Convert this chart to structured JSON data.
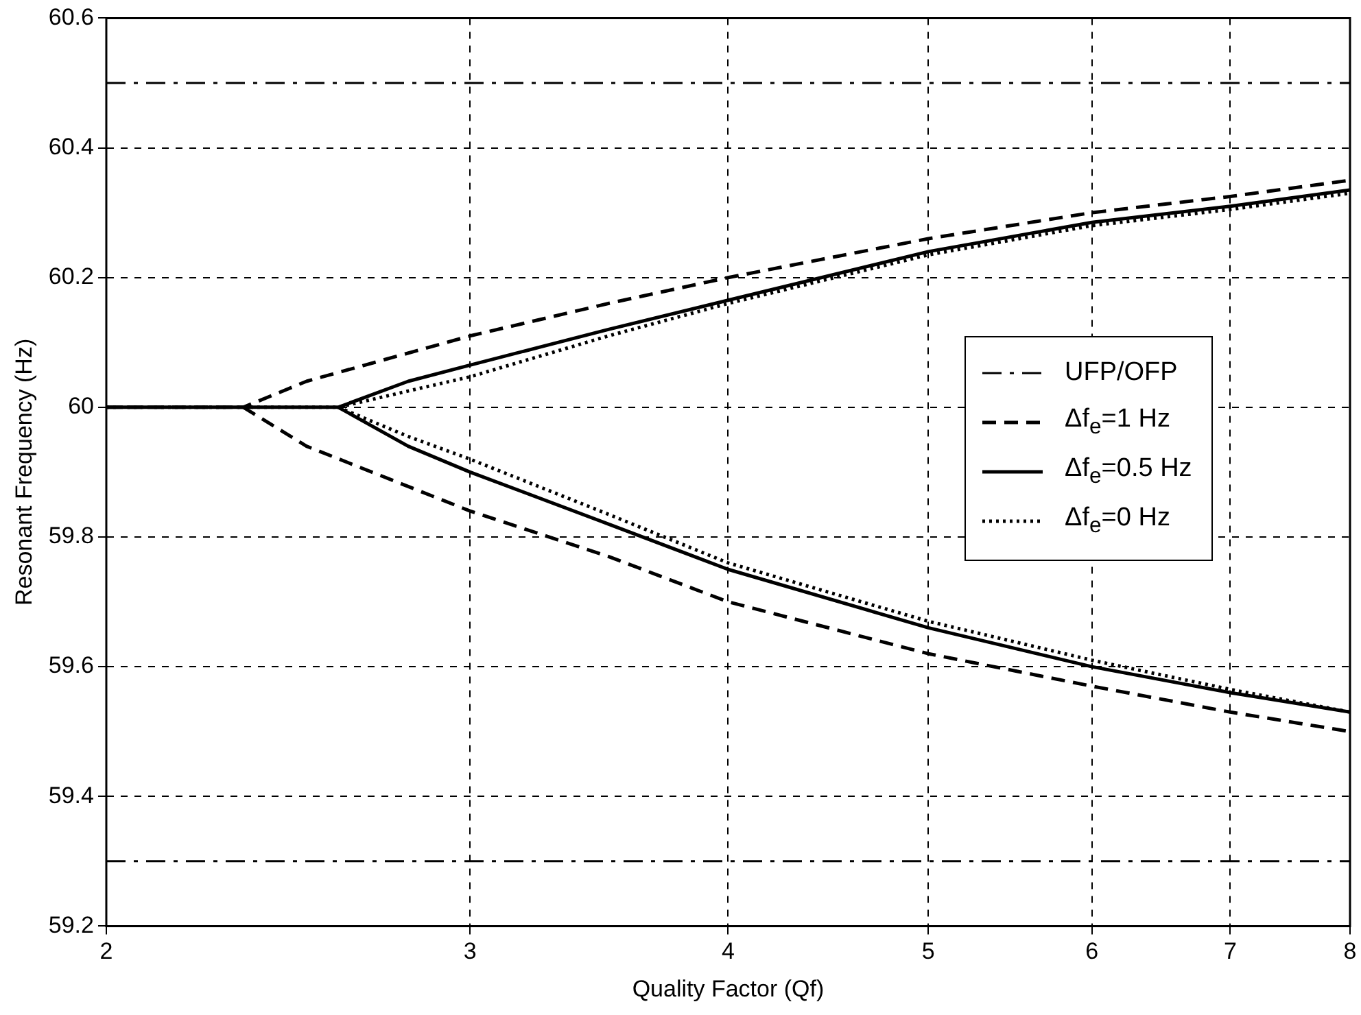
{
  "chart_data": {
    "type": "line",
    "xlabel": "Quality Factor (Qf)",
    "ylabel": "Resonant Frequency (Hz)",
    "log": "x",
    "xlim": [
      2,
      8
    ],
    "xticks": [
      2,
      3,
      4,
      5,
      6,
      7,
      8
    ],
    "ylim": [
      59.2,
      60.6
    ],
    "yticks": [
      59.2,
      59.4,
      59.6,
      59.8,
      60,
      60.2,
      60.4,
      60.6
    ],
    "grid": true,
    "legend": "right",
    "marker": "none",
    "series": [
      {
        "name": "UFP/OFP",
        "color": "#000000",
        "line_style": "dashdot",
        "x": [
          2,
          8
        ],
        "values": [
          60.5,
          60.5
        ]
      },
      {
        "color": "#000000",
        "line_style": "dashdot",
        "x": [
          2,
          8
        ],
        "values": [
          59.3,
          59.3
        ]
      },
      {
        "name": "Δf$_{e}$=1 Hz",
        "color": "#000000",
        "line_style": "dashed",
        "x": [
          2,
          2.33,
          2.5,
          3,
          3.5,
          4,
          5,
          6,
          7,
          8
        ],
        "values": [
          60,
          60,
          60.04,
          60.11,
          60.16,
          60.2,
          60.26,
          60.3,
          60.325,
          60.35
        ]
      },
      {
        "color": "#000000",
        "line_style": "dashed",
        "x": [
          2.33,
          2.5,
          3,
          3.5,
          4,
          5,
          6,
          7,
          8
        ],
        "values": [
          60,
          59.94,
          59.84,
          59.77,
          59.7,
          59.62,
          59.57,
          59.53,
          59.5
        ]
      },
      {
        "name": "Δf$_{e}$=0.5 Hz",
        "color": "#000000",
        "line_style": "solid",
        "x": [
          2,
          2.59,
          2.8,
          3,
          3.5,
          4,
          5,
          6,
          7,
          8
        ],
        "values": [
          60,
          60,
          60.04,
          60.065,
          60.12,
          60.165,
          60.24,
          60.285,
          60.31,
          60.335
        ]
      },
      {
        "color": "#000000",
        "line_style": "solid",
        "x": [
          2.59,
          2.8,
          3,
          3.5,
          4,
          5,
          6,
          7,
          8
        ],
        "values": [
          60,
          59.94,
          59.9,
          59.82,
          59.75,
          59.66,
          59.6,
          59.56,
          59.53
        ]
      },
      {
        "name": "Δf$_{e}$=0 Hz",
        "color": "#000000",
        "line_style": "dotted",
        "x": [
          2,
          2.59,
          2.8,
          3,
          3.5,
          4,
          5,
          6,
          7,
          8
        ],
        "values": [
          60,
          60,
          60.025,
          60.047,
          60.11,
          60.16,
          60.235,
          60.28,
          60.305,
          60.33
        ]
      },
      {
        "color": "#000000",
        "line_style": "dotted",
        "x": [
          2.59,
          2.8,
          3,
          3.5,
          4,
          5,
          6,
          7,
          8
        ],
        "values": [
          60,
          59.955,
          59.92,
          59.835,
          59.76,
          59.67,
          59.61,
          59.565,
          59.53
        ]
      }
    ]
  }
}
